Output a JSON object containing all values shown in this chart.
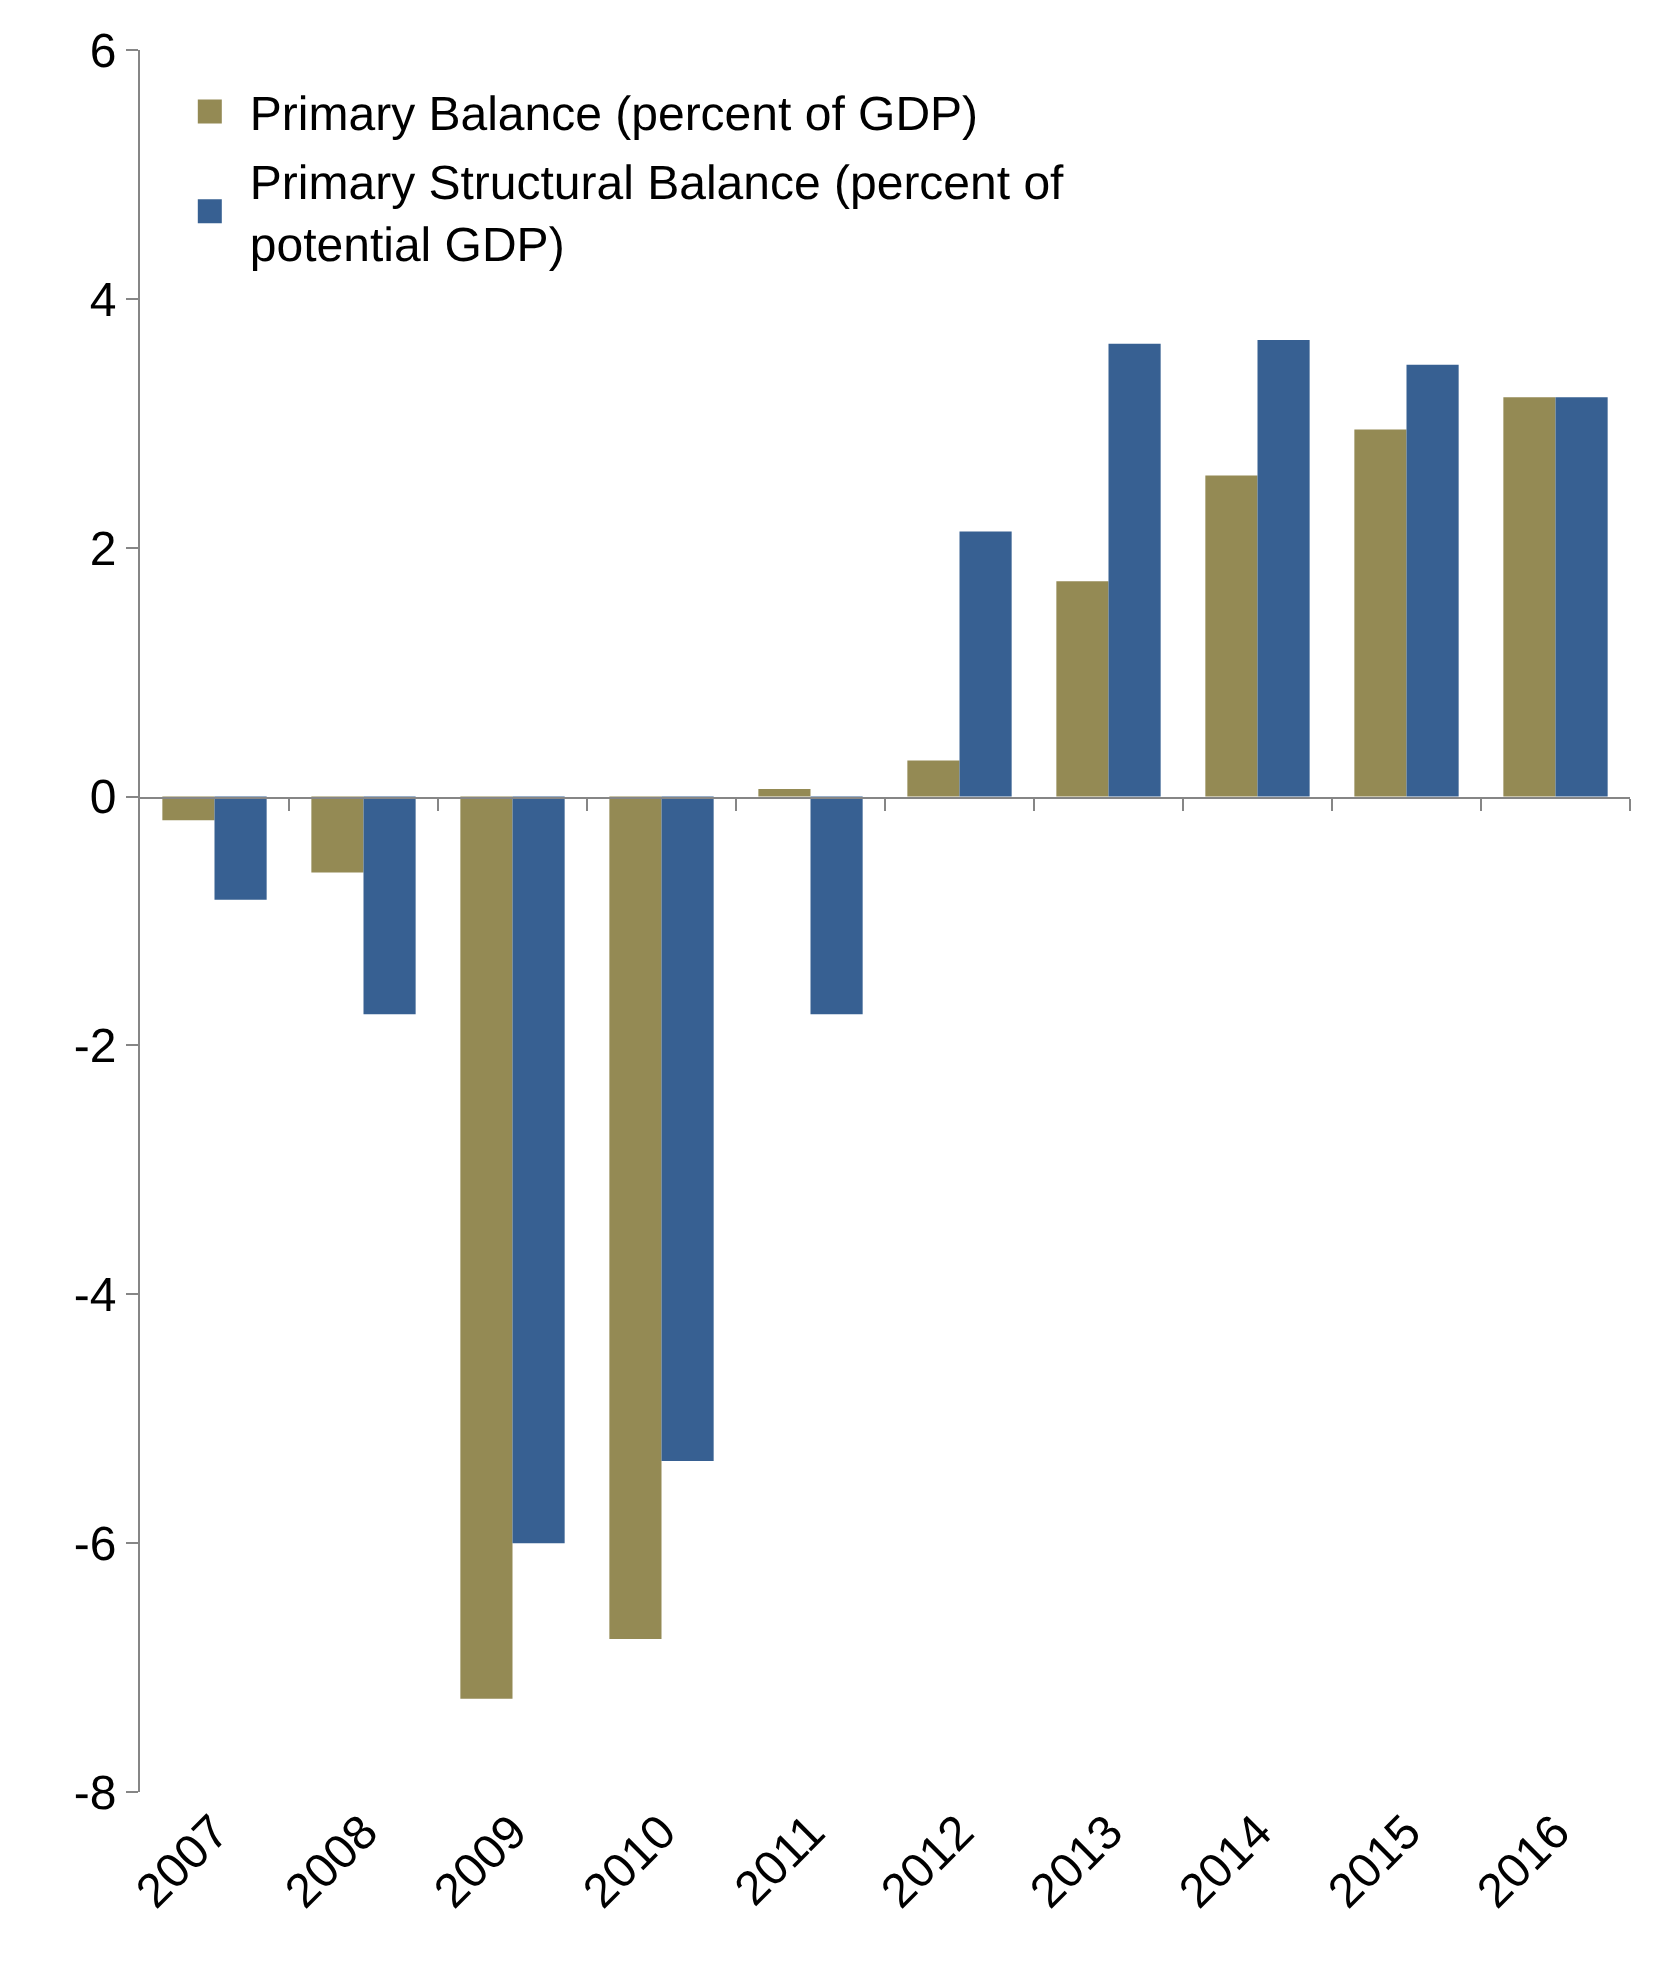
{
  "chart_data": {
    "type": "bar",
    "categories": [
      "2007",
      "2008",
      "2009",
      "2010",
      "2011",
      "2012",
      "2013",
      "2014",
      "2015",
      "2016"
    ],
    "series": [
      {
        "name": "Primary Balance (percent of GDP)",
        "color": "#948a54",
        "values": [
          -0.19,
          -0.61,
          -7.25,
          -6.77,
          0.06,
          0.29,
          1.73,
          2.58,
          2.95,
          3.21
        ]
      },
      {
        "name": "Primary Structural Balance (percent of potential GDP)",
        "color": "#376092",
        "values": [
          -0.83,
          -1.75,
          -6.0,
          -5.34,
          -1.75,
          2.13,
          3.64,
          3.67,
          3.47,
          3.21
        ]
      }
    ],
    "ylim": [
      -8,
      6
    ],
    "yticks": [
      -8,
      -6,
      -4,
      -2,
      0,
      2,
      4,
      6
    ],
    "legend": "top left"
  }
}
